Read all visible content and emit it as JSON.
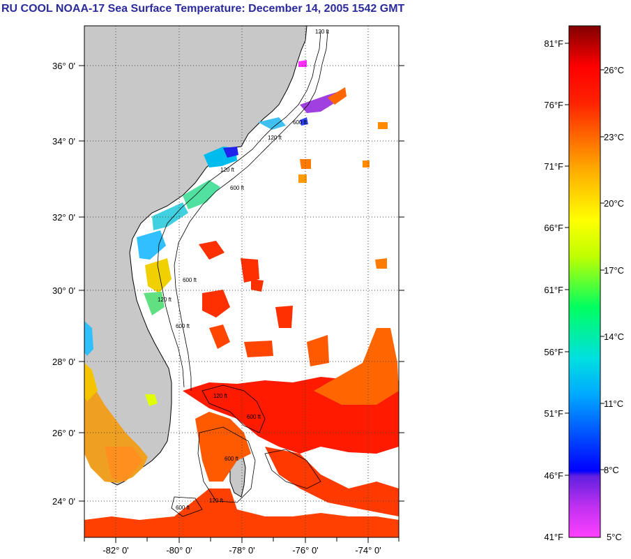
{
  "title": "RU COOL  NOAA-17  Sea Surface Temperature:  December 14, 2005 1542 GMT",
  "map": {
    "lon_range": [
      -83.0,
      -73.0
    ],
    "lat_range": [
      23.0,
      37.0
    ],
    "lon_ticks": [
      "-82° 0'",
      "-80° 0'",
      "-78° 0'",
      "-76° 0'",
      "-74° 0'"
    ],
    "lat_ticks": [
      "36° 0'",
      "34° 0'",
      "32° 0'",
      "30° 0'",
      "28° 0'",
      "26° 0'",
      "24° 0'"
    ],
    "grid": "dotted",
    "colors": {
      "land": "#c8c8c8",
      "ocean_no_data": "#ffffff",
      "coastline": "#000000"
    },
    "contour_labels": [
      "120 ft",
      "600 ft",
      "120 ft",
      "600 ft",
      "120 ft",
      "600 ft",
      "120 ft",
      "600 ft",
      "120 ft",
      "600 ft",
      "600 ft",
      "120 ft",
      "600 ft"
    ]
  },
  "colorbar": {
    "fahrenheit_labels": [
      "81°F",
      "76°F",
      "71°F",
      "66°F",
      "61°F",
      "56°F",
      "51°F",
      "46°F",
      "41°F"
    ],
    "celsius_labels": [
      "26°C",
      "23°C",
      "20°C",
      "17°C",
      "14°C",
      "11°C",
      "8°C",
      "5°C"
    ],
    "range_f": [
      41,
      81
    ],
    "colors": [
      "#ff40ff",
      "#7a2ad8",
      "#0000ff",
      "#00bfff",
      "#00ffaa",
      "#7fff00",
      "#ffff00",
      "#ffaa00",
      "#ff5500",
      "#ff0000",
      "#c00000",
      "#800000"
    ]
  }
}
